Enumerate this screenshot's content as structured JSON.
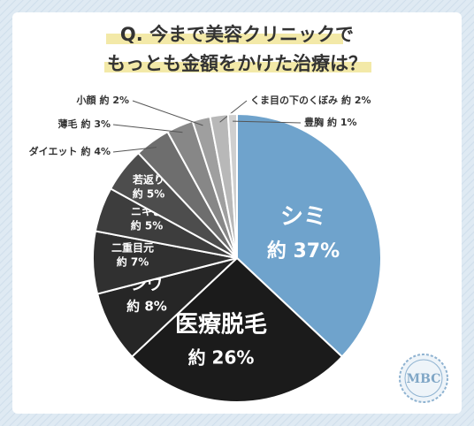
{
  "chart_data": {
    "type": "pie",
    "title_lines": [
      "Q. 今まで美容クリニックで",
      "もっとも金額をかけた治療は？"
    ],
    "categories": [
      "シミ",
      "医療脱毛",
      "シワ",
      "二重目元",
      "ニキビ",
      "若返り",
      "ダイエット",
      "薄毛",
      "小顔",
      "くま目の下のくぼみ",
      "豊胸"
    ],
    "values": [
      37,
      26,
      8,
      7,
      5,
      5,
      4,
      3,
      2,
      2,
      1
    ],
    "value_labels": [
      "約 37%",
      "約 26%",
      "約 8%",
      "約 7%",
      "約 5%",
      "約 5%",
      "約 4%",
      "約 3%",
      "約 2%",
      "約 2%",
      "約 1%"
    ],
    "colors": [
      "#6fa3cc",
      "#1b1b1b",
      "#262626",
      "#303030",
      "#3d3d3d",
      "#4d4d4d",
      "#6e6e6e",
      "#878787",
      "#9f9f9f",
      "#b8b8b8",
      "#cfcfcf"
    ],
    "logo": "MBC"
  }
}
